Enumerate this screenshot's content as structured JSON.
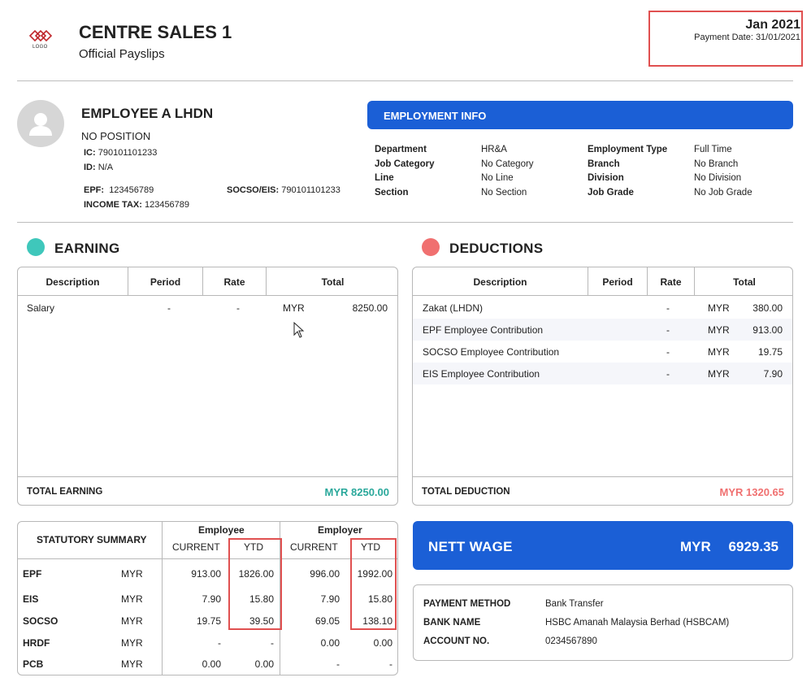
{
  "header": {
    "logo_text": "LOGO",
    "company": "CENTRE SALES 1",
    "subtitle": "Official Payslips",
    "period": "Jan 2021",
    "payment_date": "Payment Date: 31/01/2021"
  },
  "employee": {
    "name": "EMPLOYEE A LHDN",
    "position": "NO POSITION",
    "ic_label": "IC:",
    "ic": "790101101233",
    "id_label": "ID:",
    "id": "N/A",
    "epf_label": "EPF:",
    "epf": "123456789",
    "socso_label": "SOCSO/EIS:",
    "socso": "790101101233",
    "tax_label": "INCOME TAX:",
    "tax": "123456789"
  },
  "employment_info": {
    "title": "EMPLOYMENT INFO",
    "rows": [
      {
        "l1": "Department",
        "v1": "HR&A",
        "l2": "Employment Type",
        "v2": "Full Time"
      },
      {
        "l1": "Job Category",
        "v1": "No Category",
        "l2": "Branch",
        "v2": "No Branch"
      },
      {
        "l1": "Line",
        "v1": "No Line",
        "l2": "Division",
        "v2": "No Division"
      },
      {
        "l1": "Section",
        "v1": "No Section",
        "l2": "Job Grade",
        "v2": "No Job Grade"
      }
    ]
  },
  "earning": {
    "title": "EARNING",
    "dot_color": "#3fc7bb",
    "headers": [
      "Description",
      "Period",
      "Rate",
      "Total"
    ],
    "rows": [
      {
        "desc": "Salary",
        "period": "-",
        "rate": "-",
        "cur": "MYR",
        "amount": "8250.00"
      }
    ],
    "total_label": "TOTAL EARNING",
    "total_value": "MYR 8250.00",
    "total_color": "#2aa89b"
  },
  "deductions": {
    "title": "DEDUCTIONS",
    "dot_color": "#f07070",
    "headers": [
      "Description",
      "Period",
      "Rate",
      "Total"
    ],
    "rows": [
      {
        "desc": "Zakat (LHDN)",
        "period": "-",
        "cur": "MYR",
        "amount": "380.00"
      },
      {
        "desc": "EPF Employee Contribution",
        "period": "-",
        "cur": "MYR",
        "amount": "913.00"
      },
      {
        "desc": "SOCSO Employee Contribution",
        "period": "-",
        "cur": "MYR",
        "amount": "19.75"
      },
      {
        "desc": "EIS Employee Contribution",
        "period": "-",
        "cur": "MYR",
        "amount": "7.90"
      }
    ],
    "total_label": "TOTAL DEDUCTION",
    "total_value": "MYR 1320.65",
    "total_color": "#f07070"
  },
  "statutory": {
    "title": "STATUTORY SUMMARY",
    "employee_label": "Employee",
    "employer_label": "Employer",
    "current_label": "CURRENT",
    "ytd_label": "YTD",
    "rows": [
      {
        "name": "EPF",
        "cur": "MYR",
        "ee_cur": "913.00",
        "ee_ytd": "1826.00",
        "er_cur": "996.00",
        "er_ytd": "1992.00"
      },
      {
        "name": "EIS",
        "cur": "MYR",
        "ee_cur": "7.90",
        "ee_ytd": "15.80",
        "er_cur": "7.90",
        "er_ytd": "15.80"
      },
      {
        "name": "SOCSO",
        "cur": "MYR",
        "ee_cur": "19.75",
        "ee_ytd": "39.50",
        "er_cur": "69.05",
        "er_ytd": "138.10"
      },
      {
        "name": "HRDF",
        "cur": "MYR",
        "ee_cur": "-",
        "ee_ytd": "-",
        "er_cur": "0.00",
        "er_ytd": "0.00"
      },
      {
        "name": "PCB",
        "cur": "MYR",
        "ee_cur": "0.00",
        "ee_ytd": "0.00",
        "er_cur": "-",
        "er_ytd": "-"
      }
    ]
  },
  "nett": {
    "label": "NETT WAGE",
    "currency": "MYR",
    "value": "6929.35"
  },
  "payment": {
    "method_label": "PAYMENT METHOD",
    "method": "Bank Transfer",
    "bank_label": "BANK NAME",
    "bank": "HSBC Amanah Malaysia Berhad (HSBCAM)",
    "account_label": "ACCOUNT NO.",
    "account": "0234567890"
  },
  "colors": {
    "primary_blue": "#1b5fd6",
    "highlight_red": "#e05050"
  }
}
